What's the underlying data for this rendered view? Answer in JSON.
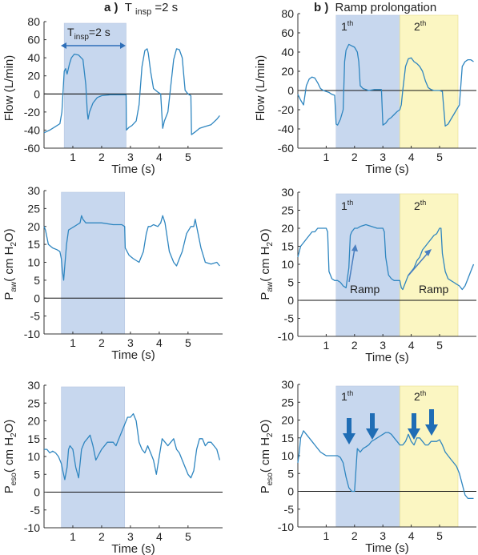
{
  "colors": {
    "line": "#2f86c0",
    "axis": "#333333",
    "zero": "#111111",
    "shade_blue": "#c7d7ee",
    "shade_yellow": "#fbf6c2",
    "arrow": "#1f6db5",
    "ramp_arrow": "#4a7fc0"
  },
  "titles": {
    "left": {
      "prefix": "a )",
      "main": "T",
      "sub": "insp",
      "suffix": "=2 s"
    },
    "right": {
      "prefix": "b )",
      "main": "Ramp prolongation"
    }
  },
  "annotations": {
    "tinsp": {
      "main": "T",
      "sub": "insp",
      "suffix": "=2 s"
    },
    "first": {
      "base": "1",
      "sup": "th"
    },
    "second": {
      "base": "2",
      "sup": "th"
    },
    "ramp": "Ramp"
  },
  "ylabels": {
    "flow": {
      "text": "Flow (L/min)"
    },
    "paw": {
      "p": "P",
      "sub": "aw",
      "rest1": "( cm H",
      "sub2": "2",
      "rest2": "O)"
    },
    "peso": {
      "p": "P",
      "sub": "eso",
      "rest1": "( cm H",
      "sub2": "2",
      "rest2": "O)"
    }
  },
  "chart_data": [
    {
      "id": "a_flow",
      "type": "line",
      "xlabel": "Time (s)",
      "ylabel": "Flow (L/min)",
      "xlim": [
        0,
        6.2
      ],
      "ylim": [
        -60,
        80
      ],
      "xticks": [
        1,
        2,
        3,
        4,
        5
      ],
      "yticks": [
        -60,
        -40,
        -20,
        0,
        20,
        40,
        60,
        80
      ],
      "shade": [
        {
          "x0": 0.7,
          "x1": 2.85,
          "color": "blue"
        }
      ],
      "x": [
        0,
        0.2,
        0.4,
        0.55,
        0.62,
        0.7,
        0.75,
        0.8,
        0.88,
        0.95,
        1.05,
        1.2,
        1.35,
        1.45,
        1.5,
        1.53,
        1.58,
        1.7,
        1.85,
        2.0,
        2.3,
        2.6,
        2.8,
        2.85,
        2.86,
        2.95,
        3.05,
        3.2,
        3.3,
        3.4,
        3.5,
        3.58,
        3.62,
        3.7,
        3.8,
        3.95,
        4.05,
        4.1,
        4.12,
        4.18,
        4.3,
        4.5,
        4.6,
        4.7,
        4.8,
        4.9,
        5.0,
        5.1,
        5.12,
        5.25,
        5.4,
        5.6,
        5.8,
        6.0,
        6.1
      ],
      "y": [
        -43,
        -40,
        -36,
        -33,
        -20,
        25,
        28,
        22,
        33,
        40,
        44,
        43,
        38,
        10,
        -20,
        -28,
        -20,
        -10,
        -4,
        -2,
        -1,
        -1,
        -1,
        -1,
        -40,
        -37,
        -35,
        -30,
        -12,
        30,
        48,
        50,
        45,
        25,
        6,
        2,
        0,
        -28,
        -38,
        -30,
        -20,
        38,
        50,
        49,
        40,
        4,
        0,
        -2,
        -45,
        -42,
        -38,
        -36,
        -34,
        -28,
        -24
      ]
    },
    {
      "id": "a_paw",
      "type": "line",
      "xlabel": "Time (s)",
      "ylabel": "Paw (cm H2O)",
      "xlim": [
        0,
        6.2
      ],
      "ylim": [
        -10,
        30
      ],
      "xticks": [
        1,
        2,
        3,
        4,
        5
      ],
      "yticks": [
        -10,
        -5,
        0,
        5,
        10,
        15,
        20,
        25,
        30
      ],
      "shade": [
        {
          "x0": 0.6,
          "x1": 2.8,
          "color": "blue"
        }
      ],
      "x": [
        0,
        0.05,
        0.15,
        0.3,
        0.45,
        0.55,
        0.6,
        0.63,
        0.68,
        0.72,
        0.78,
        0.85,
        0.95,
        1.05,
        1.15,
        1.25,
        1.3,
        1.35,
        1.45,
        1.6,
        2.0,
        2.4,
        2.7,
        2.8,
        2.82,
        2.95,
        3.1,
        3.3,
        3.45,
        3.55,
        3.62,
        3.7,
        3.8,
        3.95,
        4.05,
        4.12,
        4.2,
        4.35,
        4.5,
        4.6,
        4.7,
        4.8,
        4.95,
        5.1,
        5.2,
        5.25,
        5.3,
        5.45,
        5.6,
        5.8,
        6.0,
        6.1
      ],
      "y": [
        20,
        19,
        15,
        14,
        13.5,
        13,
        11,
        8,
        5,
        9,
        15,
        19,
        19.5,
        20,
        20.5,
        21,
        23,
        22,
        21,
        21,
        21,
        20.5,
        20.5,
        20,
        14,
        12,
        11,
        10,
        13,
        18,
        20,
        20,
        20.5,
        20,
        21,
        23,
        21,
        13,
        10,
        9,
        11,
        13,
        18,
        20,
        20,
        22,
        20,
        14,
        10,
        9.5,
        10,
        9
      ]
    },
    {
      "id": "a_peso",
      "type": "line",
      "xlabel": "Time (s)",
      "ylabel": "Peso (cm H2O)",
      "xlim": [
        0,
        6.2
      ],
      "ylim": [
        -10,
        30
      ],
      "xticks": [
        1,
        2,
        3,
        4,
        5
      ],
      "yticks": [
        -10,
        -5,
        0,
        5,
        10,
        15,
        20,
        25,
        30
      ],
      "shade": [
        {
          "x0": 0.6,
          "x1": 2.8,
          "color": "blue"
        }
      ],
      "x": [
        0,
        0.1,
        0.2,
        0.3,
        0.4,
        0.5,
        0.6,
        0.65,
        0.72,
        0.8,
        0.85,
        0.9,
        1.0,
        1.1,
        1.2,
        1.3,
        1.4,
        1.5,
        1.6,
        1.7,
        1.8,
        2.0,
        2.2,
        2.4,
        2.5,
        2.6,
        2.7,
        2.8,
        2.9,
        3.0,
        3.1,
        3.2,
        3.3,
        3.4,
        3.5,
        3.6,
        3.7,
        3.8,
        3.9,
        4.0,
        4.1,
        4.2,
        4.3,
        4.4,
        4.5,
        4.6,
        4.7,
        4.8,
        4.9,
        5.0,
        5.1,
        5.2,
        5.3,
        5.4,
        5.5,
        5.6,
        5.7,
        5.8,
        5.9,
        6.0,
        6.1
      ],
      "y": [
        12,
        12,
        11,
        11.5,
        11,
        10,
        8,
        6,
        3.5,
        7,
        12,
        13,
        12,
        7,
        4,
        12,
        14,
        15,
        16,
        13,
        9,
        12,
        14,
        14,
        13,
        15,
        17,
        19,
        21,
        21,
        22,
        20,
        14,
        12,
        11,
        13,
        11,
        9,
        5,
        10,
        15,
        14,
        13,
        14,
        15,
        12,
        11,
        9,
        7,
        5,
        4,
        6,
        12,
        15,
        15,
        13,
        14,
        14,
        13,
        12,
        9
      ]
    },
    {
      "id": "b_flow",
      "type": "line",
      "xlabel": "Time (s)",
      "ylabel": "Flow (L/min)",
      "xlim": [
        0,
        6.3
      ],
      "ylim": [
        -60,
        80
      ],
      "xticks": [
        1,
        2,
        3,
        4,
        5
      ],
      "yticks": [
        -60,
        -40,
        -20,
        0,
        20,
        40,
        60,
        80
      ],
      "shade": [
        {
          "x0": 1.35,
          "x1": 3.6,
          "color": "blue"
        },
        {
          "x0": 3.6,
          "x1": 5.65,
          "color": "yellow"
        }
      ],
      "x": [
        0,
        0.1,
        0.2,
        0.3,
        0.4,
        0.5,
        0.6,
        0.7,
        0.8,
        0.9,
        1.0,
        1.1,
        1.2,
        1.3,
        1.35,
        1.4,
        1.5,
        1.6,
        1.65,
        1.7,
        1.8,
        2.0,
        2.1,
        2.15,
        2.2,
        2.3,
        2.4,
        2.5,
        2.7,
        2.8,
        2.95,
        3.0,
        3.1,
        3.2,
        3.3,
        3.4,
        3.5,
        3.6,
        3.65,
        3.7,
        3.8,
        3.9,
        4.0,
        4.1,
        4.2,
        4.3,
        4.4,
        4.5,
        4.6,
        4.7,
        4.8,
        4.9,
        5.0,
        5.1,
        5.2,
        5.3,
        5.4,
        5.5,
        5.6,
        5.7,
        5.8,
        5.9,
        6.0,
        6.1,
        6.2
      ],
      "y": [
        -4,
        -10,
        -15,
        5,
        12,
        14,
        13,
        8,
        2,
        0,
        -1,
        -2,
        -4,
        -5,
        -35,
        -36,
        -30,
        -20,
        30,
        42,
        48,
        45,
        40,
        30,
        5,
        2,
        1,
        0,
        1,
        1,
        1,
        -36,
        -34,
        -30,
        -28,
        -25,
        -22,
        -20,
        -15,
        0,
        25,
        33,
        34,
        30,
        28,
        25,
        20,
        10,
        3,
        1,
        0,
        0,
        0,
        -1,
        -37,
        -35,
        -30,
        -25,
        -20,
        -15,
        25,
        30,
        32,
        32,
        30
      ]
    },
    {
      "id": "b_paw",
      "type": "line",
      "xlabel": "Time (s)",
      "ylabel": "Paw (cm H2O)",
      "xlim": [
        0,
        6.3
      ],
      "ylim": [
        -10,
        30
      ],
      "xticks": [
        1,
        2,
        3,
        4,
        5
      ],
      "yticks": [
        -10,
        -5,
        0,
        5,
        10,
        15,
        20,
        25,
        30
      ],
      "shade": [
        {
          "x0": 1.35,
          "x1": 3.6,
          "color": "blue"
        },
        {
          "x0": 3.6,
          "x1": 5.65,
          "color": "yellow"
        }
      ],
      "x": [
        0,
        0.1,
        0.2,
        0.3,
        0.4,
        0.5,
        0.6,
        0.7,
        0.8,
        0.9,
        1.0,
        1.05,
        1.1,
        1.2,
        1.3,
        1.4,
        1.5,
        1.6,
        1.7,
        1.8,
        1.85,
        1.9,
        2.0,
        2.1,
        2.2,
        2.4,
        2.6,
        2.8,
        3.0,
        3.05,
        3.1,
        3.2,
        3.3,
        3.4,
        3.5,
        3.6,
        3.65,
        3.7,
        3.8,
        3.9,
        4.0,
        4.1,
        4.2,
        4.3,
        4.4,
        4.5,
        4.6,
        4.7,
        4.8,
        4.9,
        5.0,
        5.05,
        5.1,
        5.2,
        5.3,
        5.4,
        5.5,
        5.6,
        5.7,
        5.8,
        5.9,
        6.0,
        6.1,
        6.2
      ],
      "y": [
        12,
        15,
        16,
        17,
        18,
        19,
        19,
        20,
        20,
        20,
        20,
        19,
        8,
        6,
        5.5,
        5.5,
        5,
        4,
        3.5,
        9,
        18,
        19,
        20,
        20,
        20.5,
        21,
        20.5,
        20,
        20,
        19,
        12,
        7,
        6,
        5.5,
        5.5,
        5.5,
        3.5,
        3,
        5,
        7,
        8,
        9,
        11,
        12,
        14,
        15,
        16,
        17,
        18,
        18.5,
        20,
        20,
        13,
        8,
        6,
        5.5,
        5,
        4.5,
        4,
        3,
        4,
        6,
        8,
        10
      ]
    },
    {
      "id": "b_peso",
      "type": "line",
      "xlabel": "Time (s)",
      "ylabel": "Peso (cm H2O)",
      "xlim": [
        0,
        6.3
      ],
      "ylim": [
        -10,
        30
      ],
      "xticks": [
        1,
        2,
        3,
        4,
        5
      ],
      "yticks": [
        -10,
        -5,
        0,
        5,
        10,
        15,
        20,
        25,
        30
      ],
      "shade": [
        {
          "x0": 1.35,
          "x1": 3.6,
          "color": "blue"
        },
        {
          "x0": 3.6,
          "x1": 5.65,
          "color": "yellow"
        }
      ],
      "x": [
        0,
        0.05,
        0.1,
        0.2,
        0.3,
        0.4,
        0.5,
        0.6,
        0.7,
        0.8,
        0.9,
        1.0,
        1.1,
        1.2,
        1.3,
        1.4,
        1.5,
        1.6,
        1.7,
        1.8,
        1.9,
        2.0,
        2.1,
        2.2,
        2.3,
        2.4,
        2.5,
        2.6,
        2.7,
        2.8,
        2.9,
        3.0,
        3.1,
        3.2,
        3.3,
        3.4,
        3.5,
        3.6,
        3.7,
        3.8,
        3.9,
        4.0,
        4.1,
        4.2,
        4.3,
        4.4,
        4.5,
        4.6,
        4.7,
        4.8,
        4.9,
        5.0,
        5.1,
        5.2,
        5.3,
        5.4,
        5.5,
        5.6,
        5.7,
        5.8,
        5.9,
        6.0,
        6.1,
        6.2
      ],
      "y": [
        8,
        11,
        15,
        17,
        16,
        15,
        14,
        13,
        12,
        11,
        10.5,
        10,
        10,
        10,
        10,
        10,
        9.5,
        8,
        4,
        1,
        0,
        0,
        12,
        11,
        12,
        12.5,
        13,
        14,
        14.5,
        15,
        15.5,
        16,
        16.5,
        16.5,
        16,
        15,
        14,
        13,
        13,
        14,
        16,
        14,
        13,
        15,
        15,
        14,
        13,
        13,
        14,
        14,
        14,
        14.5,
        13,
        11,
        10,
        9,
        8,
        7,
        5,
        2,
        -1,
        -2,
        -2,
        -2
      ]
    }
  ]
}
